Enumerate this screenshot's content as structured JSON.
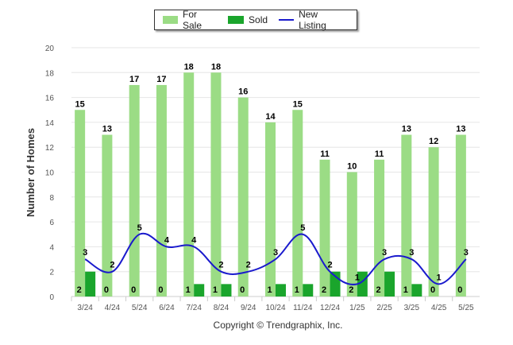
{
  "colors": {
    "for_sale": "#9bdc85",
    "sold": "#1aa52c",
    "new_listing": "#1a1acd",
    "grid": "#e6e6e6"
  },
  "copyright": "Copyright © Trendgraphix, Inc.",
  "chart_data": {
    "type": "bar",
    "categories": [
      "3/24",
      "4/24",
      "5/24",
      "6/24",
      "7/24",
      "8/24",
      "9/24",
      "10/24",
      "11/24",
      "12/24",
      "1/25",
      "2/25",
      "3/25",
      "4/25",
      "5/25"
    ],
    "series": [
      {
        "name": "For Sale",
        "type": "bar",
        "values": [
          15,
          13,
          17,
          17,
          18,
          18,
          16,
          14,
          15,
          11,
          10,
          11,
          13,
          12,
          13
        ]
      },
      {
        "name": "Sold",
        "type": "bar",
        "values": [
          2,
          0,
          0,
          0,
          1,
          1,
          0,
          1,
          1,
          2,
          2,
          2,
          1,
          0,
          0
        ]
      },
      {
        "name": "New Listing",
        "type": "line",
        "values": [
          3,
          2,
          5,
          4,
          4,
          2,
          2,
          3,
          5,
          2,
          1,
          3,
          3,
          1,
          3
        ]
      }
    ],
    "ylabel": "Number of Homes",
    "xlabel": "",
    "ylim": [
      0,
      20
    ],
    "yticks": [
      0,
      2,
      4,
      6,
      8,
      10,
      12,
      14,
      16,
      18,
      20
    ],
    "grid": true,
    "legend_position": "top-center"
  }
}
